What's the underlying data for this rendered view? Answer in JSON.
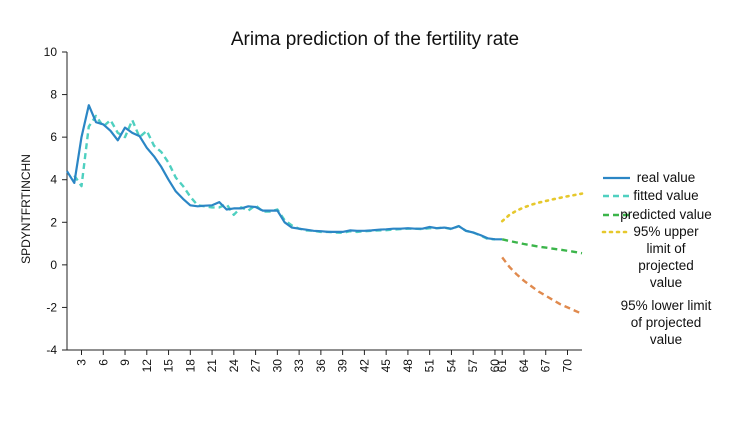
{
  "chart_data": {
    "type": "line",
    "title": "Arima prediction of the fertility rate",
    "xlabel": "",
    "ylabel": "SPDYNTFRTINCHN",
    "ylim": [
      -4,
      10
    ],
    "yticks": [
      -4,
      -2,
      0,
      2,
      4,
      6,
      8,
      10
    ],
    "xlim": [
      1,
      72
    ],
    "xticks": [
      3,
      6,
      9,
      12,
      15,
      18,
      21,
      24,
      27,
      30,
      33,
      36,
      39,
      42,
      45,
      48,
      51,
      54,
      57,
      60,
      61,
      64,
      67,
      70
    ],
    "grid": false,
    "legend_position": "right",
    "series": [
      {
        "name": "real value",
        "style": "solid",
        "color": "#2b86c5",
        "x": [
          1,
          2,
          3,
          4,
          5,
          6,
          7,
          8,
          9,
          10,
          11,
          12,
          13,
          14,
          15,
          16,
          17,
          18,
          19,
          20,
          21,
          22,
          23,
          24,
          25,
          26,
          27,
          28,
          29,
          30,
          31,
          32,
          33,
          34,
          35,
          36,
          37,
          38,
          39,
          40,
          41,
          42,
          43,
          44,
          45,
          46,
          47,
          48,
          49,
          50,
          51,
          52,
          53,
          54,
          55,
          56,
          57,
          58,
          59,
          60,
          61
        ],
        "y": [
          4.4,
          3.85,
          6.0,
          7.5,
          6.7,
          6.6,
          6.3,
          5.85,
          6.45,
          6.2,
          6.05,
          5.5,
          5.1,
          4.6,
          4.0,
          3.45,
          3.1,
          2.8,
          2.75,
          2.78,
          2.8,
          2.95,
          2.6,
          2.65,
          2.65,
          2.75,
          2.72,
          2.55,
          2.55,
          2.55,
          2.0,
          1.75,
          1.7,
          1.65,
          1.6,
          1.58,
          1.55,
          1.55,
          1.55,
          1.62,
          1.6,
          1.6,
          1.62,
          1.65,
          1.67,
          1.7,
          1.7,
          1.72,
          1.7,
          1.7,
          1.78,
          1.72,
          1.75,
          1.7,
          1.82,
          1.6,
          1.52,
          1.4,
          1.25,
          1.2,
          1.2
        ]
      },
      {
        "name": "fitted value",
        "style": "dashed",
        "color": "#4fd0c0",
        "x": [
          2,
          3,
          4,
          5,
          6,
          7,
          8,
          9,
          10,
          11,
          12,
          13,
          14,
          15,
          16,
          17,
          18,
          19,
          20,
          21,
          22,
          23,
          24,
          25,
          26,
          27,
          28,
          29,
          30,
          31,
          32,
          33,
          34,
          35,
          36,
          37,
          38,
          39,
          40,
          41,
          42,
          43,
          44,
          45,
          46,
          47,
          48,
          49,
          50,
          51,
          52,
          53,
          54,
          55,
          56,
          57,
          58,
          59,
          60
        ],
        "y": [
          4.2,
          3.7,
          6.5,
          7.0,
          6.5,
          6.8,
          6.2,
          6.0,
          6.8,
          6.0,
          6.3,
          5.6,
          5.3,
          4.8,
          4.1,
          3.7,
          3.2,
          2.8,
          2.75,
          2.7,
          2.7,
          2.85,
          2.35,
          2.7,
          2.55,
          2.8,
          2.5,
          2.5,
          2.6,
          2.1,
          1.85,
          1.7,
          1.62,
          1.6,
          1.55,
          1.55,
          1.52,
          1.5,
          1.58,
          1.55,
          1.58,
          1.6,
          1.62,
          1.63,
          1.66,
          1.68,
          1.7,
          1.7,
          1.68,
          1.72,
          1.72,
          1.75,
          1.68,
          1.82,
          1.6,
          1.52,
          1.38,
          1.22,
          1.2
        ]
      },
      {
        "name": "predicted value",
        "style": "dashed",
        "color": "#3bb54a",
        "x": [
          61,
          62,
          63,
          64,
          65,
          66,
          67,
          68,
          69,
          70,
          71,
          72
        ],
        "y": [
          1.2,
          1.12,
          1.05,
          0.98,
          0.92,
          0.86,
          0.81,
          0.76,
          0.71,
          0.66,
          0.61,
          0.55
        ]
      },
      {
        "name": "95% upper limit of projected value",
        "style": "dotted",
        "color": "#e6c82c",
        "x": [
          61,
          62,
          63,
          64,
          65,
          66,
          67,
          68,
          69,
          70,
          71,
          72
        ],
        "y": [
          2.05,
          2.35,
          2.55,
          2.7,
          2.82,
          2.92,
          3.0,
          3.08,
          3.15,
          3.22,
          3.28,
          3.35
        ]
      },
      {
        "name": "95% lower limit of projected value",
        "style": "dashed",
        "color": "#e08a4e",
        "x": [
          61,
          62,
          63,
          64,
          65,
          66,
          67,
          68,
          69,
          70,
          71,
          72
        ],
        "y": [
          0.35,
          -0.1,
          -0.45,
          -0.75,
          -1.0,
          -1.25,
          -1.45,
          -1.65,
          -1.85,
          -2.0,
          -2.15,
          -2.3
        ]
      }
    ],
    "legend": [
      {
        "series": 0,
        "lines": [
          "real value"
        ]
      },
      {
        "series": 1,
        "lines": [
          "fitted value"
        ]
      },
      {
        "series": 2,
        "lines": [
          "predicted value"
        ]
      },
      {
        "series": 3,
        "lines": [
          "95% upper",
          "limit of",
          "projected",
          "value"
        ]
      },
      {
        "series": 4,
        "lines": [
          "95% lower limit",
          "of projected",
          "value"
        ]
      }
    ]
  }
}
